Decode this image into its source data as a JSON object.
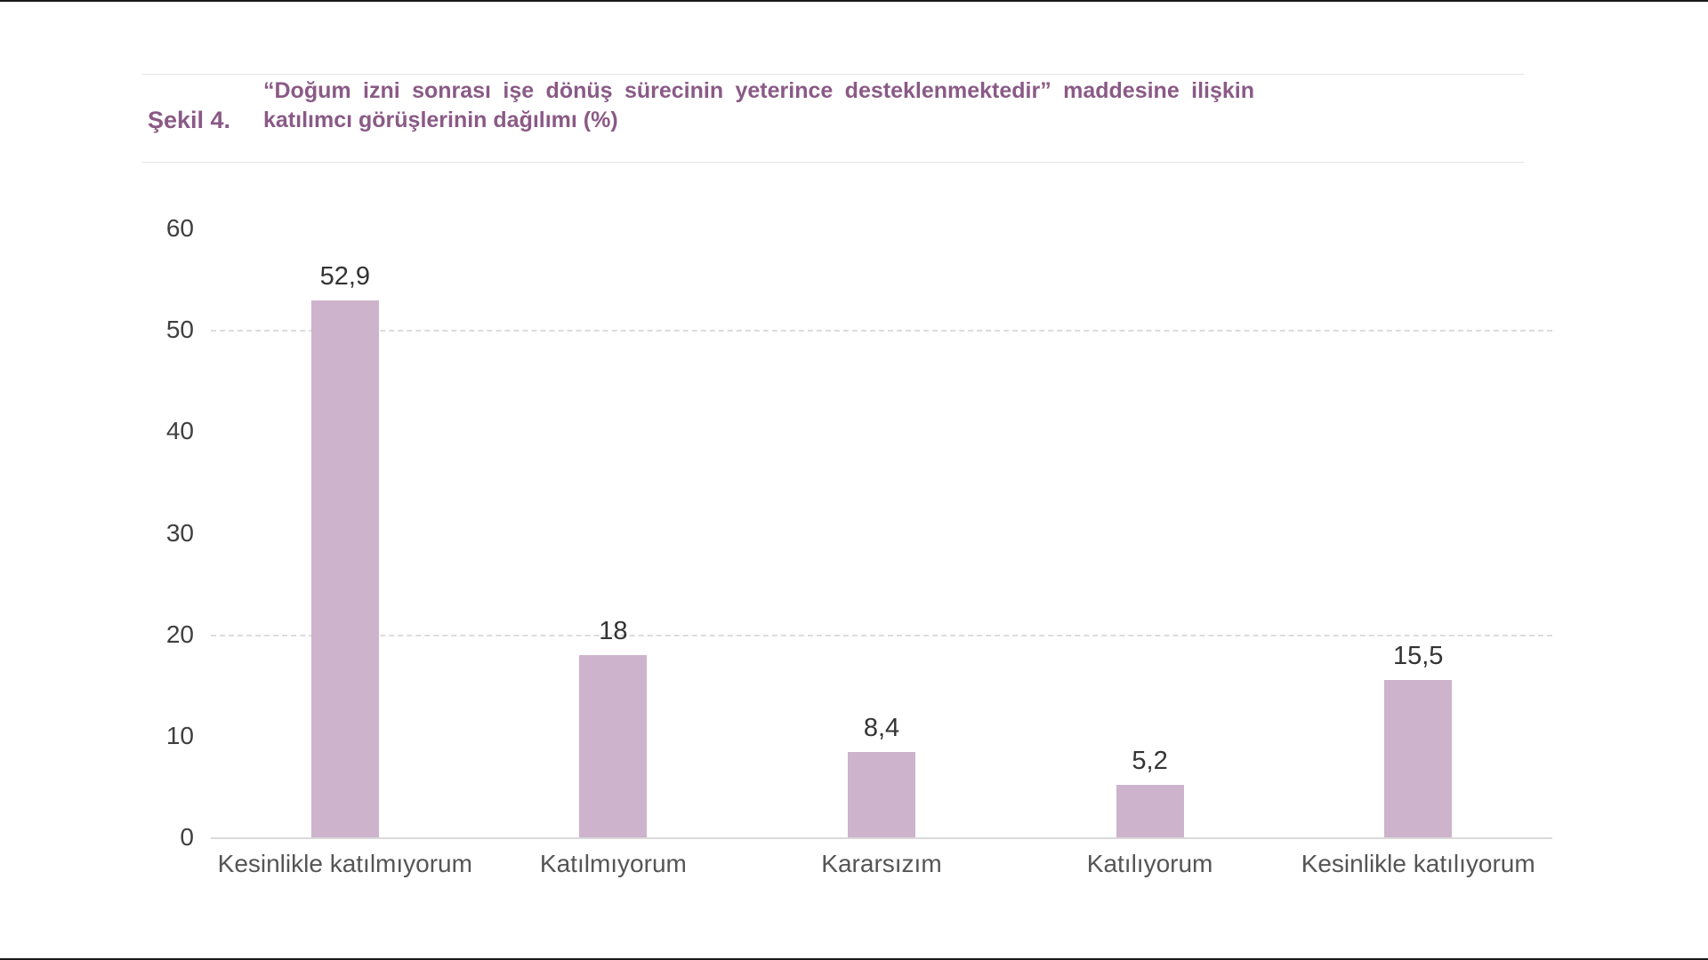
{
  "figure": {
    "label": "Şekil 4.",
    "title_line1": "“Doğum izni sonrası işe dönüş sürecinin yeterince desteklenmektedir” maddesine ilişkin",
    "title_line2": "katılımcı görüşlerinin dağılımı (%)"
  },
  "chart_data": {
    "type": "bar",
    "title": "“Doğum izni sonrası işe dönüş sürecinin yeterince desteklenmektedir” maddesine ilişkin katılımcı görüşlerinin dağılımı (%)",
    "categories": [
      "Kesinlikle katılmıyorum",
      "Katılmıyorum",
      "Kararsızım",
      "Katılıyorum",
      "Kesinlikle katılıyorum"
    ],
    "values": [
      52.9,
      18,
      8.4,
      5.2,
      15.5
    ],
    "value_labels": [
      "52,9",
      "18",
      "8,4",
      "5,2",
      "15,5"
    ],
    "xlabel": "",
    "ylabel": "",
    "ylim": [
      0,
      60
    ],
    "y_ticks": [
      0,
      10,
      20,
      30,
      40,
      50,
      60
    ],
    "gridlines_at": [
      20,
      50
    ],
    "grid_style": "dashed",
    "legend": "none",
    "bar_color": "#cdb3cc"
  },
  "colors": {
    "title_purple": "#8a5a86",
    "bar_fill": "#cdb3cc",
    "gridline_gray": "#dcdcdc",
    "axis_text": "#3f3f3f",
    "category_text": "#555555"
  }
}
